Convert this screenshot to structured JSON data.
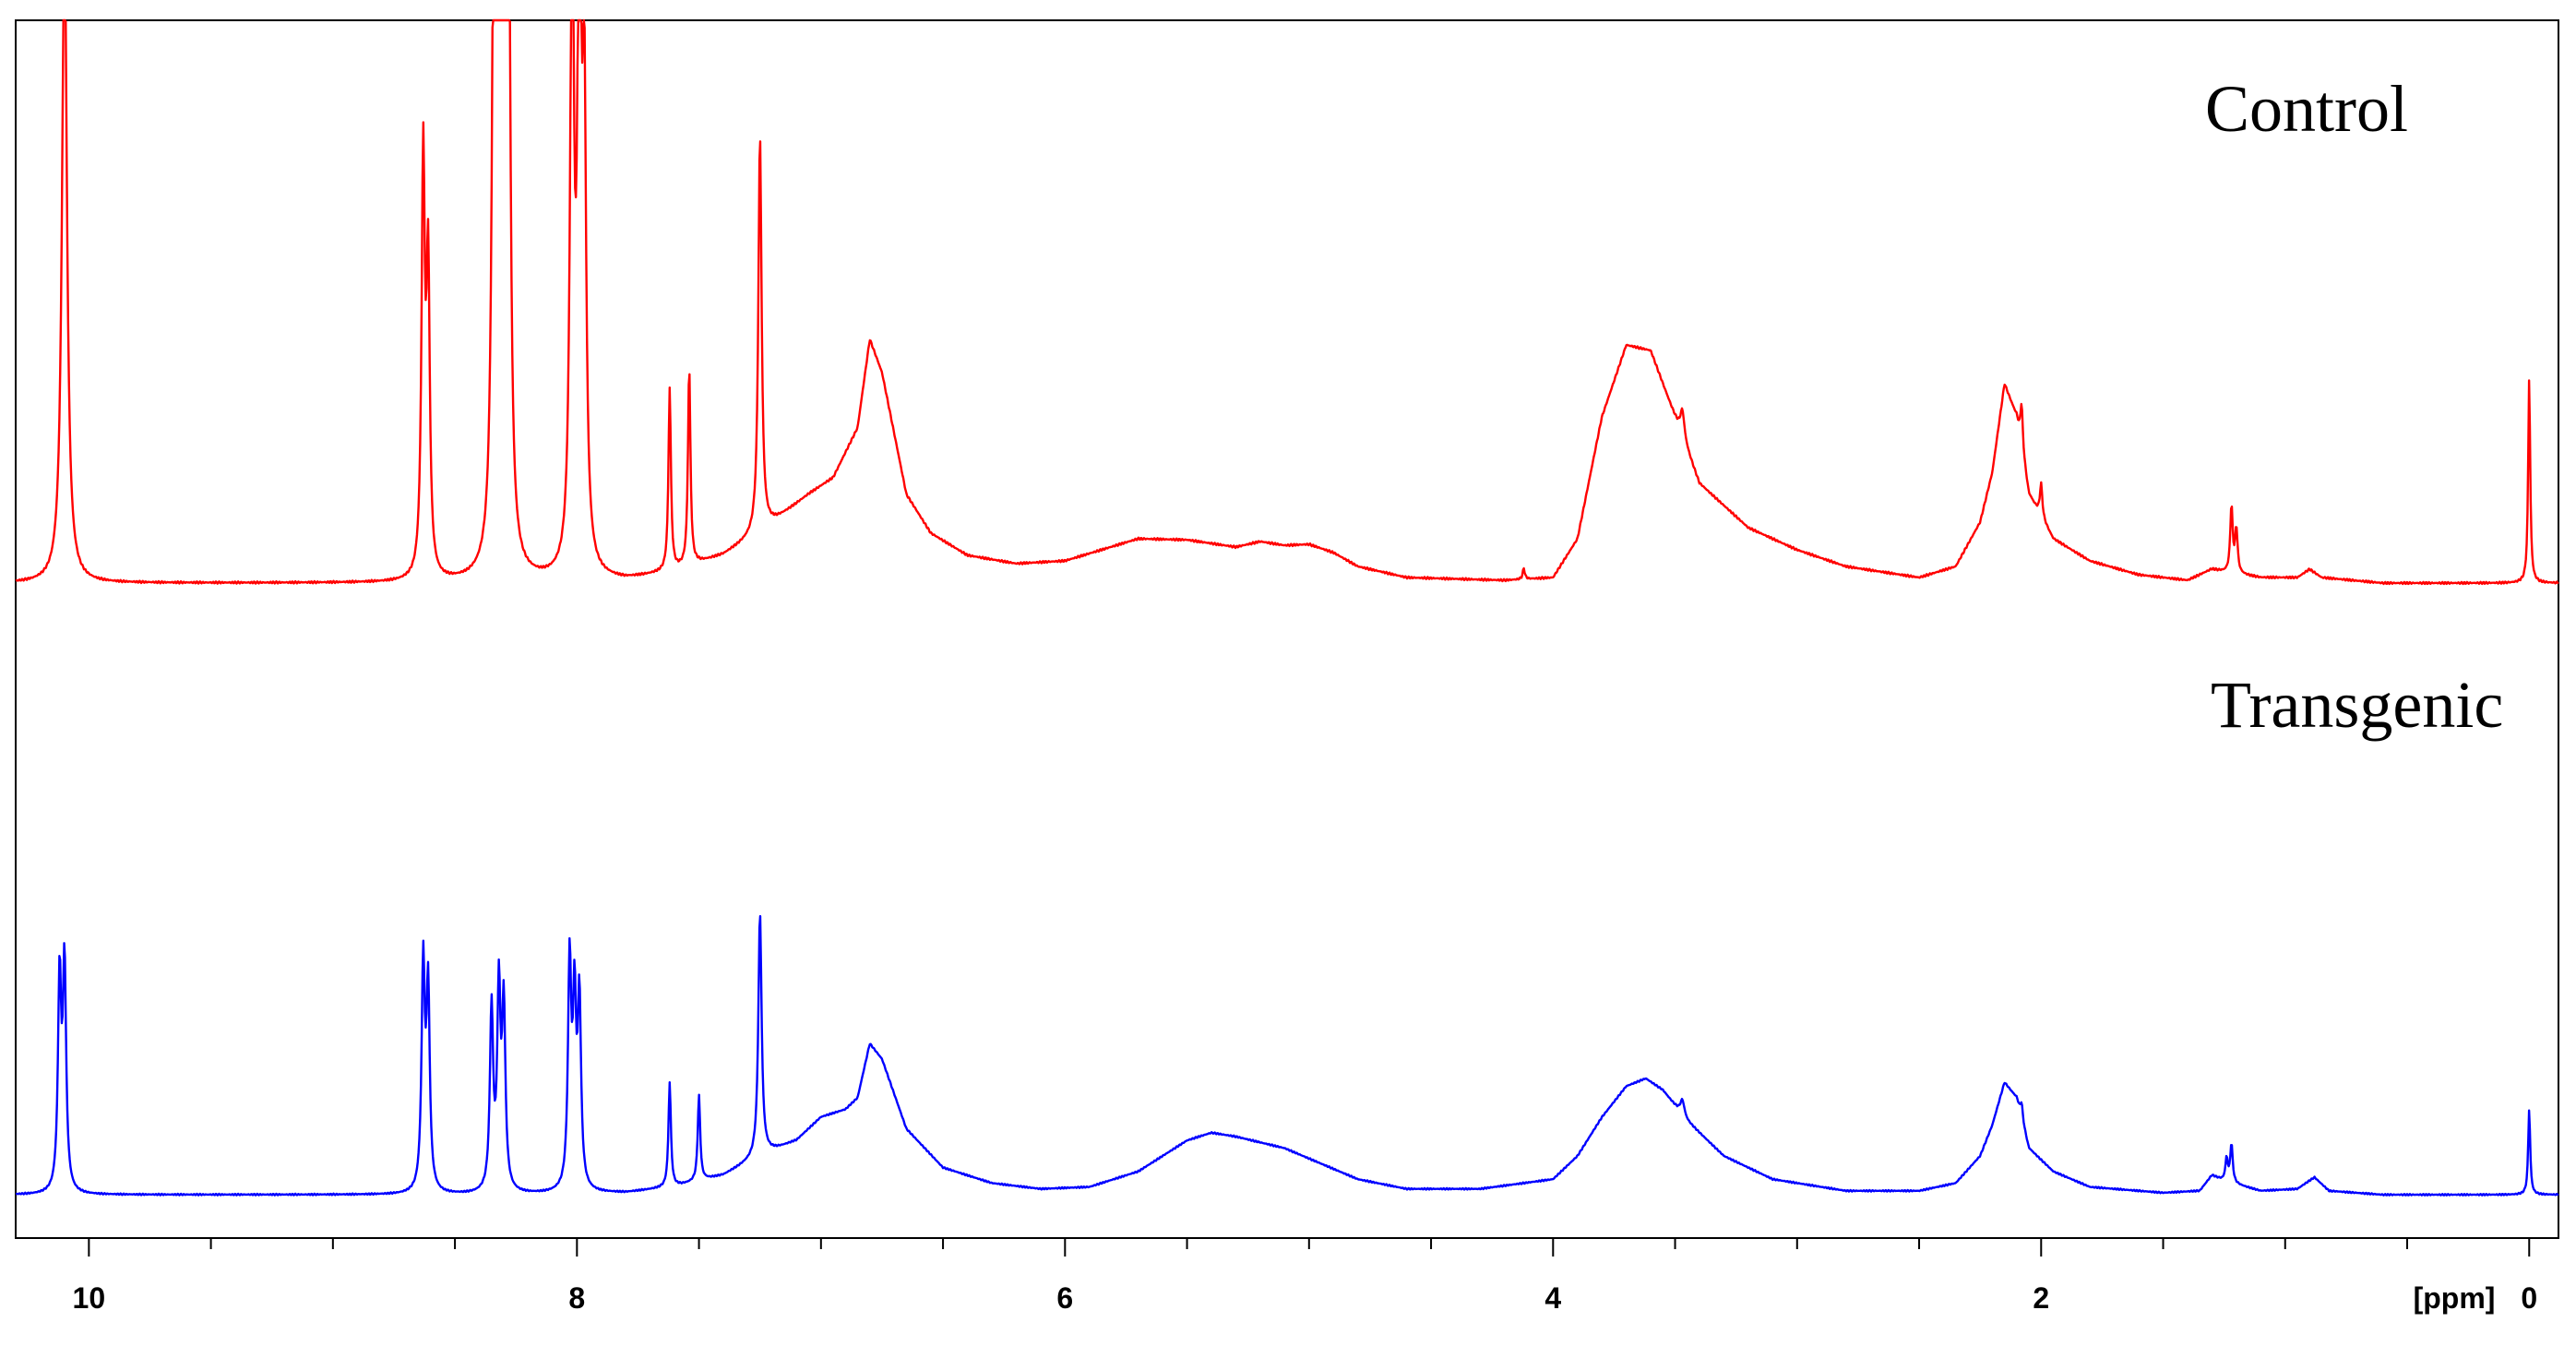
{
  "chart_data": {
    "type": "line",
    "xlabel": "[ppm]",
    "x_reversed": true,
    "xlim": [
      10.3,
      -0.12
    ],
    "x_major_ticks": [
      10,
      8,
      6,
      4,
      2,
      0
    ],
    "x_minor_step": 0.5,
    "x_tick_labels": [
      "10",
      "8",
      "6",
      "4",
      "2",
      "0"
    ],
    "grid": false,
    "legend": "none",
    "series": [
      {
        "name": "Control",
        "color": "#ff0000",
        "baseline": 0,
        "peak_limit": 1.0,
        "background": [
          [
            10.3,
            0.0
          ],
          [
            8.6,
            0.0
          ],
          [
            8.3,
            0.0
          ],
          [
            7.8,
            0.005
          ],
          [
            7.6,
            0.02
          ],
          [
            7.4,
            0.05
          ],
          [
            7.25,
            0.09
          ],
          [
            7.05,
            0.16
          ],
          [
            6.95,
            0.19
          ],
          [
            6.85,
            0.28
          ],
          [
            6.8,
            0.44
          ],
          [
            6.75,
            0.38
          ],
          [
            6.65,
            0.16
          ],
          [
            6.55,
            0.09
          ],
          [
            6.4,
            0.05
          ],
          [
            6.2,
            0.035
          ],
          [
            6.0,
            0.04
          ],
          [
            5.7,
            0.08
          ],
          [
            5.5,
            0.078
          ],
          [
            5.3,
            0.065
          ],
          [
            5.2,
            0.075
          ],
          [
            5.1,
            0.068
          ],
          [
            5.0,
            0.07
          ],
          [
            4.9,
            0.055
          ],
          [
            4.8,
            0.03
          ],
          [
            4.6,
            0.01
          ],
          [
            4.2,
            0.005
          ],
          [
            4.0,
            0.01
          ],
          [
            3.9,
            0.08
          ],
          [
            3.8,
            0.3
          ],
          [
            3.7,
            0.43
          ],
          [
            3.6,
            0.42
          ],
          [
            3.5,
            0.3
          ],
          [
            3.4,
            0.18
          ],
          [
            3.2,
            0.1
          ],
          [
            3.0,
            0.06
          ],
          [
            2.8,
            0.03
          ],
          [
            2.5,
            0.01
          ],
          [
            2.35,
            0.03
          ],
          [
            2.25,
            0.11
          ],
          [
            2.2,
            0.2
          ],
          [
            2.15,
            0.36
          ],
          [
            2.1,
            0.3
          ],
          [
            2.05,
            0.16
          ],
          [
            1.95,
            0.08
          ],
          [
            1.8,
            0.04
          ],
          [
            1.6,
            0.015
          ],
          [
            1.4,
            0.005
          ],
          [
            1.3,
            0.025
          ],
          [
            1.25,
            0.02
          ],
          [
            1.1,
            0.01
          ],
          [
            0.95,
            0.01
          ],
          [
            0.9,
            0.025
          ],
          [
            0.85,
            0.01
          ],
          [
            0.6,
            0.0
          ],
          [
            -0.12,
            0.0
          ]
        ],
        "peaks": [
          [
            10.1,
            1.2,
            0.012
          ],
          [
            8.63,
            0.75,
            0.008
          ],
          [
            8.61,
            0.55,
            0.008
          ],
          [
            8.34,
            1.2,
            0.009
          ],
          [
            8.32,
            1.2,
            0.009
          ],
          [
            8.3,
            1.2,
            0.009
          ],
          [
            8.28,
            1.1,
            0.009
          ],
          [
            8.02,
            1.2,
            0.009
          ],
          [
            7.99,
            1.2,
            0.009
          ],
          [
            7.97,
            0.8,
            0.009
          ],
          [
            7.62,
            0.33,
            0.006
          ],
          [
            7.54,
            0.36,
            0.006
          ],
          [
            7.25,
            0.72,
            0.008
          ],
          [
            3.47,
            0.05,
            0.01
          ],
          [
            2.08,
            0.08,
            0.006
          ],
          [
            2.0,
            0.06,
            0.006
          ],
          [
            1.22,
            0.12,
            0.006
          ],
          [
            1.2,
            0.08,
            0.006
          ],
          [
            4.12,
            0.02,
            0.005
          ],
          [
            0.0,
            0.37,
            0.005
          ]
        ]
      },
      {
        "name": "Transgenic",
        "color": "#0000ff",
        "baseline": 0,
        "peak_limit": 1.0,
        "background": [
          [
            10.3,
            0.0
          ],
          [
            8.7,
            0.0
          ],
          [
            8.3,
            0.0
          ],
          [
            7.8,
            0.005
          ],
          [
            7.6,
            0.02
          ],
          [
            7.4,
            0.05
          ],
          [
            7.25,
            0.1
          ],
          [
            7.1,
            0.14
          ],
          [
            7.0,
            0.2
          ],
          [
            6.9,
            0.22
          ],
          [
            6.85,
            0.25
          ],
          [
            6.8,
            0.39
          ],
          [
            6.75,
            0.35
          ],
          [
            6.65,
            0.17
          ],
          [
            6.5,
            0.07
          ],
          [
            6.3,
            0.03
          ],
          [
            6.1,
            0.015
          ],
          [
            5.9,
            0.02
          ],
          [
            5.7,
            0.06
          ],
          [
            5.5,
            0.14
          ],
          [
            5.4,
            0.16
          ],
          [
            5.3,
            0.15
          ],
          [
            5.1,
            0.12
          ],
          [
            4.95,
            0.08
          ],
          [
            4.8,
            0.04
          ],
          [
            4.6,
            0.015
          ],
          [
            4.3,
            0.015
          ],
          [
            4.0,
            0.04
          ],
          [
            3.9,
            0.1
          ],
          [
            3.8,
            0.2
          ],
          [
            3.7,
            0.28
          ],
          [
            3.62,
            0.3
          ],
          [
            3.55,
            0.27
          ],
          [
            3.45,
            0.19
          ],
          [
            3.3,
            0.1
          ],
          [
            3.1,
            0.04
          ],
          [
            2.8,
            0.01
          ],
          [
            2.5,
            0.01
          ],
          [
            2.35,
            0.03
          ],
          [
            2.25,
            0.1
          ],
          [
            2.2,
            0.18
          ],
          [
            2.15,
            0.29
          ],
          [
            2.1,
            0.25
          ],
          [
            2.05,
            0.12
          ],
          [
            1.95,
            0.06
          ],
          [
            1.8,
            0.02
          ],
          [
            1.5,
            0.005
          ],
          [
            1.35,
            0.01
          ],
          [
            1.3,
            0.05
          ],
          [
            1.25,
            0.035
          ],
          [
            1.1,
            0.01
          ],
          [
            0.95,
            0.015
          ],
          [
            0.88,
            0.045
          ],
          [
            0.82,
            0.01
          ],
          [
            0.6,
            0.0
          ],
          [
            -0.12,
            0.0
          ]
        ],
        "peaks": [
          [
            10.12,
            0.55,
            0.008
          ],
          [
            10.1,
            0.58,
            0.008
          ],
          [
            8.63,
            0.58,
            0.008
          ],
          [
            8.61,
            0.52,
            0.008
          ],
          [
            8.35,
            0.47,
            0.008
          ],
          [
            8.32,
            0.51,
            0.008
          ],
          [
            8.3,
            0.47,
            0.008
          ],
          [
            8.03,
            0.58,
            0.008
          ],
          [
            8.01,
            0.46,
            0.008
          ],
          [
            7.99,
            0.48,
            0.008
          ],
          [
            7.62,
            0.27,
            0.006
          ],
          [
            7.5,
            0.22,
            0.006
          ],
          [
            7.25,
            0.63,
            0.008
          ],
          [
            3.47,
            0.04,
            0.01
          ],
          [
            2.08,
            0.04,
            0.006
          ],
          [
            1.22,
            0.1,
            0.006
          ],
          [
            1.24,
            0.06,
            0.006
          ],
          [
            0.0,
            0.22,
            0.005
          ]
        ]
      }
    ]
  }
}
